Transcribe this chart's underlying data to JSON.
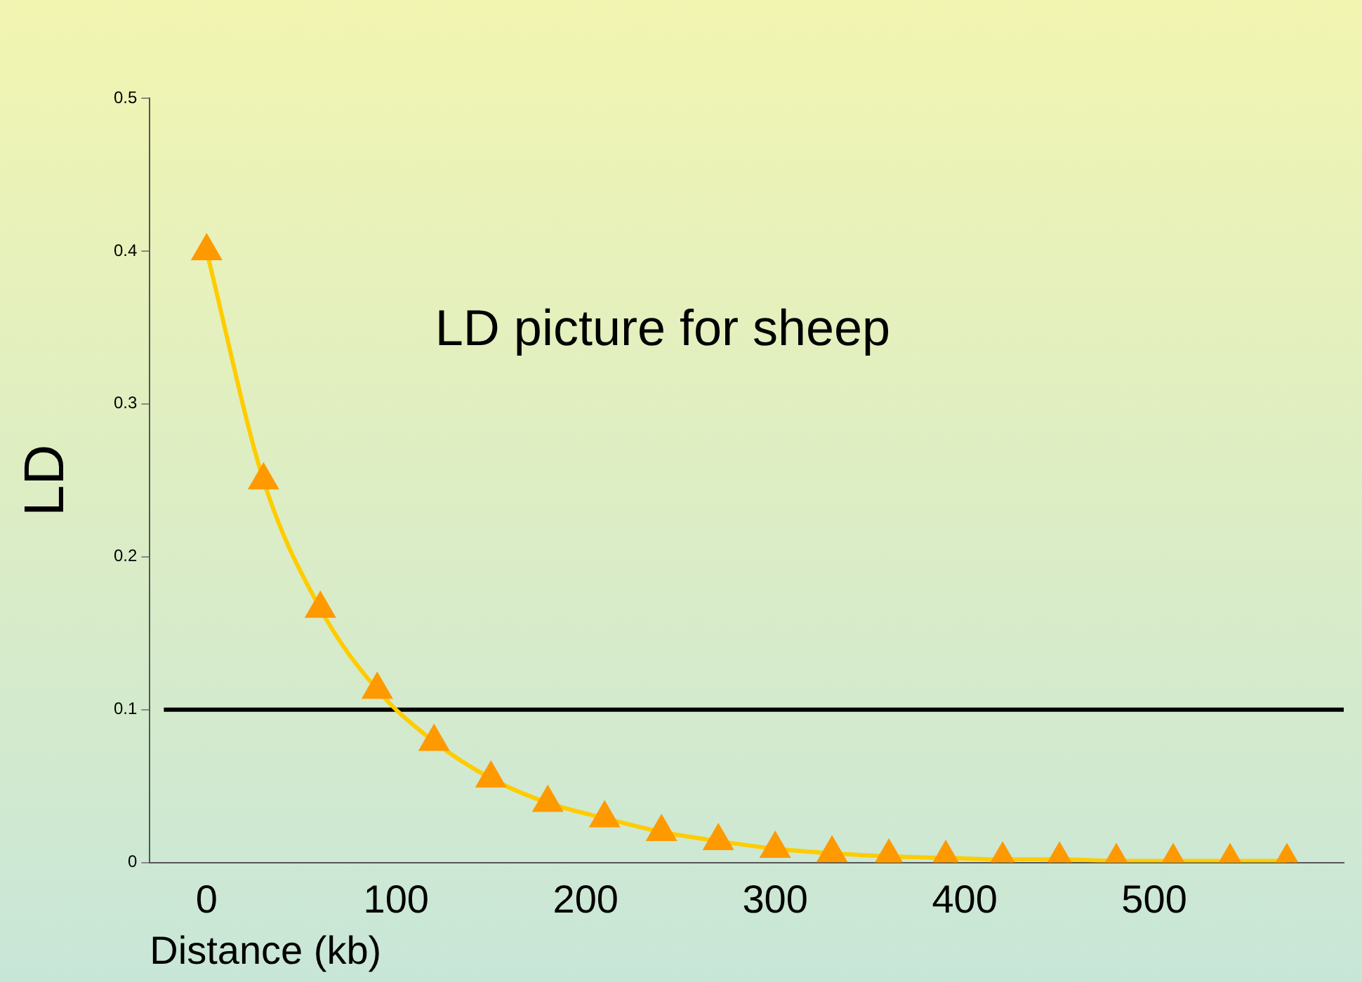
{
  "chart_data": {
    "type": "line",
    "title": "LD picture for sheep",
    "xlabel": "Distance (kb)",
    "ylabel": "LD",
    "x": [
      0,
      30,
      60,
      90,
      120,
      150,
      180,
      210,
      240,
      270,
      300,
      330,
      360,
      390,
      420,
      450,
      480,
      510,
      540,
      570
    ],
    "series": [
      {
        "color": "#ffcc00",
        "values": [
          0.4,
          0.25,
          0.166,
          0.113,
          0.079,
          0.055,
          0.039,
          0.029,
          0.02,
          0.014,
          0.009,
          0.006,
          0.004,
          0.003,
          0.002,
          0.002,
          0.001,
          0.001,
          0.001,
          0.001
        ]
      }
    ],
    "marker": "triangle",
    "xlim": [
      -30,
      600
    ],
    "xticks": [
      0,
      100,
      200,
      300,
      400,
      500
    ],
    "ylim": [
      0,
      0.5
    ],
    "yticks": [
      0,
      0.1,
      0.2,
      0.3,
      0.4,
      0.5
    ],
    "ref_lines": [
      {
        "axis": "y",
        "value": 0.1,
        "color": "#000000"
      }
    ],
    "grid": false,
    "legend": false
  }
}
